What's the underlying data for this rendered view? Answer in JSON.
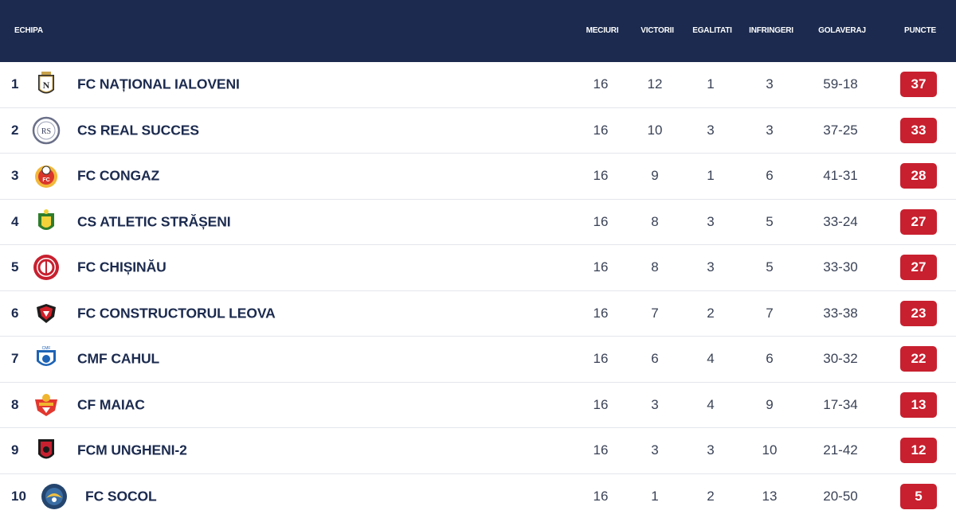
{
  "header": {
    "team": "ECHIPA",
    "played": "MECIURI",
    "wins": "VICTORII",
    "draws": "EGALITATI",
    "losses": "INFRINGERI",
    "goals": "GOLAVERAJ",
    "points": "PUNCTE"
  },
  "rows": [
    {
      "pos": "1",
      "team": "FC NAȚIONAL IALOVENI",
      "played": "16",
      "wins": "12",
      "draws": "1",
      "losses": "3",
      "goals": "59-18",
      "points": "37",
      "logo_icon": "nationala-crest-icon"
    },
    {
      "pos": "2",
      "team": "CS REAL SUCCES",
      "played": "16",
      "wins": "10",
      "draws": "3",
      "losses": "3",
      "goals": "37-25",
      "points": "33",
      "logo_icon": "real-succes-crest-icon"
    },
    {
      "pos": "3",
      "team": "FC CONGAZ",
      "played": "16",
      "wins": "9",
      "draws": "1",
      "losses": "6",
      "goals": "41-31",
      "points": "28",
      "logo_icon": "congaz-crest-icon"
    },
    {
      "pos": "4",
      "team": "CS ATLETIC STRĂȘENI",
      "played": "16",
      "wins": "8",
      "draws": "3",
      "losses": "5",
      "goals": "33-24",
      "points": "27",
      "logo_icon": "atletic-straseni-crest-icon"
    },
    {
      "pos": "5",
      "team": "FC CHIȘINĂU",
      "played": "16",
      "wins": "8",
      "draws": "3",
      "losses": "5",
      "goals": "33-30",
      "points": "27",
      "logo_icon": "chisinau-crest-icon"
    },
    {
      "pos": "6",
      "team": "FC CONSTRUCTORUL LEOVA",
      "played": "16",
      "wins": "7",
      "draws": "2",
      "losses": "7",
      "goals": "33-38",
      "points": "23",
      "logo_icon": "constructorul-crest-icon"
    },
    {
      "pos": "7",
      "team": "CMF CAHUL",
      "played": "16",
      "wins": "6",
      "draws": "4",
      "losses": "6",
      "goals": "30-32",
      "points": "22",
      "logo_icon": "cahul-crest-icon"
    },
    {
      "pos": "8",
      "team": "CF MAIAC",
      "played": "16",
      "wins": "3",
      "draws": "4",
      "losses": "9",
      "goals": "17-34",
      "points": "13",
      "logo_icon": "maiac-crest-icon"
    },
    {
      "pos": "9",
      "team": "FCM UNGHENI-2",
      "played": "16",
      "wins": "3",
      "draws": "3",
      "losses": "10",
      "goals": "21-42",
      "points": "12",
      "logo_icon": "ungheni-crest-icon"
    },
    {
      "pos": "10",
      "team": "FC SOCOL",
      "played": "16",
      "wins": "1",
      "draws": "2",
      "losses": "13",
      "goals": "20-50",
      "points": "5",
      "logo_icon": "socol-crest-icon"
    }
  ],
  "colors": {
    "header_bg": "#1b2a4e",
    "points_badge": "#c8202f",
    "text": "#1b2a4e"
  }
}
